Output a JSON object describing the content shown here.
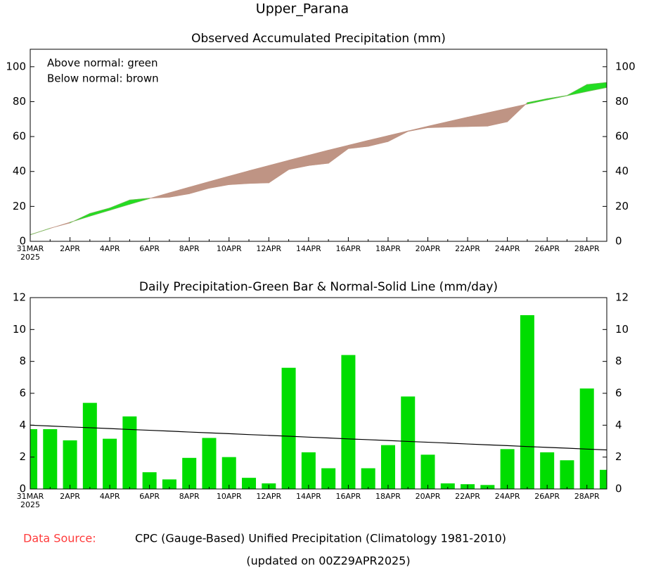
{
  "title": "Upper_Parana",
  "footer": {
    "source_label": "Data Source:",
    "source": "CPC (Gauge-Based) Unified Precipitation (Climatology 1981-2010)",
    "updated": "(updated on 00Z29APR2025)"
  },
  "chart_data": [
    {
      "type": "area",
      "title": "Observed Accumulated Precipitation (mm)",
      "annotations": [
        "Above normal: green",
        "Below normal: brown"
      ],
      "categories": [
        "31MAR",
        null,
        "2APR",
        null,
        "4APR",
        null,
        "6APR",
        null,
        "8APR",
        null,
        "10APR",
        null,
        "12APR",
        null,
        "14APR",
        null,
        "16APR",
        null,
        "18APR",
        null,
        "20APR",
        null,
        "22APR",
        null,
        "24APR",
        null,
        "26APR",
        null,
        "28APR",
        null
      ],
      "year": "2025",
      "series": [
        {
          "name": "Observed",
          "values": [
            3.75,
            7.5,
            10.55,
            15.95,
            19.1,
            23.65,
            24.7,
            25.3,
            27.25,
            30.45,
            32.45,
            33.15,
            33.5,
            41.1,
            43.4,
            44.7,
            53.1,
            54.4,
            57.15,
            62.95,
            65.1,
            65.45,
            65.75,
            66.0,
            68.5,
            79.4,
            81.7,
            83.5,
            89.8,
            91.0
          ]
        },
        {
          "name": "Normal",
          "values": [
            3.8,
            7.4,
            10.9,
            14.4,
            17.8,
            21.2,
            24.5,
            27.8,
            31.0,
            34.2,
            37.3,
            40.4,
            43.4,
            46.4,
            49.3,
            52.2,
            55.0,
            57.8,
            60.5,
            63.2,
            65.9,
            68.5,
            71.1,
            73.6,
            76.1,
            78.6,
            81.0,
            83.4,
            85.8,
            88.1
          ]
        }
      ],
      "above_color": "#22dd22",
      "below_color": "#bf9484",
      "ylim": [
        0,
        110
      ],
      "yticks": [
        0,
        20,
        40,
        60,
        80,
        100
      ]
    },
    {
      "type": "bar",
      "title": "Daily Precipitation-Green Bar & Normal-Solid Line (mm/day)",
      "categories": [
        "31MAR",
        null,
        "2APR",
        null,
        "4APR",
        null,
        "6APR",
        null,
        "8APR",
        null,
        "10APR",
        null,
        "12APR",
        null,
        "14APR",
        null,
        "16APR",
        null,
        "18APR",
        null,
        "20APR",
        null,
        "22APR",
        null,
        "24APR",
        null,
        "26APR",
        null,
        "28APR",
        null
      ],
      "year": "2025",
      "series": [
        {
          "name": "Daily",
          "color": "#00dd00",
          "values": [
            3.75,
            3.75,
            3.05,
            5.4,
            3.15,
            4.55,
            1.05,
            0.6,
            1.95,
            3.2,
            2.0,
            0.7,
            0.35,
            7.6,
            2.3,
            1.3,
            8.4,
            1.3,
            2.75,
            5.8,
            2.15,
            0.35,
            0.3,
            0.25,
            2.5,
            10.9,
            2.3,
            1.8,
            6.3,
            1.2
          ]
        },
        {
          "name": "Normal",
          "color": "#000000",
          "values": [
            4.0,
            3.95,
            3.89,
            3.84,
            3.79,
            3.73,
            3.68,
            3.63,
            3.57,
            3.52,
            3.47,
            3.41,
            3.36,
            3.31,
            3.25,
            3.2,
            3.14,
            3.09,
            3.04,
            2.98,
            2.93,
            2.88,
            2.82,
            2.77,
            2.72,
            2.66,
            2.61,
            2.56,
            2.5,
            2.45
          ]
        }
      ],
      "ylim": [
        0,
        12
      ],
      "yticks": [
        0,
        2,
        4,
        6,
        8,
        10,
        12
      ]
    }
  ]
}
